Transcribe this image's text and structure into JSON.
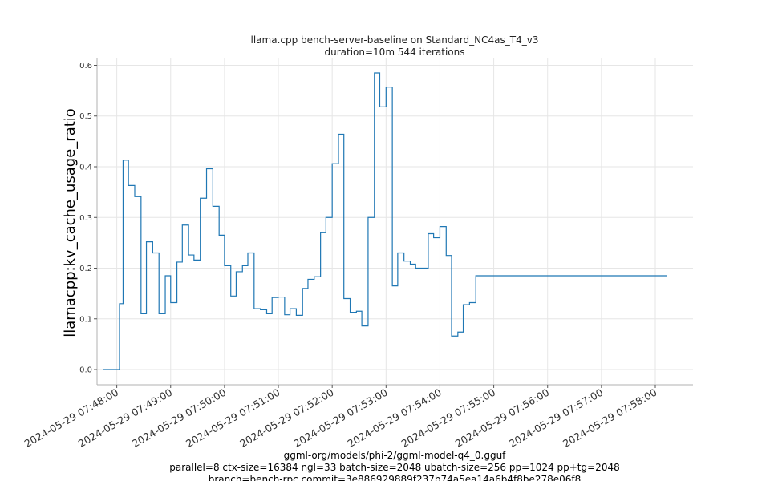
{
  "chart_data": {
    "type": "line",
    "title": "llama.cpp bench-server-baseline on Standard_NC4as_T4_v3",
    "subtitle": "duration=10m 544 iterations",
    "ylabel": "llamacpp:kv_cache_usage_ratio",
    "xlabel": "",
    "ylim": [
      -0.03,
      0.615
    ],
    "xlim": [
      "2024-05-29 07:47:38",
      "2024-05-29 07:58:42"
    ],
    "yticks": [
      "0.0",
      "0.1",
      "0.2",
      "0.3",
      "0.4",
      "0.5",
      "0.6"
    ],
    "yticks_values": [
      0.0,
      0.1,
      0.2,
      0.3,
      0.4,
      0.5,
      0.6
    ],
    "xticks": [
      "2024-05-29 07:48:00",
      "2024-05-29 07:49:00",
      "2024-05-29 07:50:00",
      "2024-05-29 07:51:00",
      "2024-05-29 07:52:00",
      "2024-05-29 07:53:00",
      "2024-05-29 07:54:00",
      "2024-05-29 07:55:00",
      "2024-05-29 07:56:00",
      "2024-05-29 07:57:00",
      "2024-05-29 07:58:00"
    ],
    "grid": true,
    "legend": "none",
    "line_color": "#1f77b4",
    "series": [
      {
        "x": [
          "2024-05-29 07:47:45",
          "2024-05-29 07:48:00",
          "2024-05-29 07:48:03",
          "2024-05-29 07:48:07",
          "2024-05-29 07:48:13",
          "2024-05-29 07:48:20",
          "2024-05-29 07:48:27",
          "2024-05-29 07:48:33",
          "2024-05-29 07:48:40",
          "2024-05-29 07:48:47",
          "2024-05-29 07:48:54",
          "2024-05-29 07:49:00",
          "2024-05-29 07:49:07",
          "2024-05-29 07:49:13",
          "2024-05-29 07:49:20",
          "2024-05-29 07:49:26",
          "2024-05-29 07:49:33",
          "2024-05-29 07:49:40",
          "2024-05-29 07:49:47",
          "2024-05-29 07:49:54",
          "2024-05-29 07:50:00",
          "2024-05-29 07:50:07",
          "2024-05-29 07:50:13",
          "2024-05-29 07:50:20",
          "2024-05-29 07:50:26",
          "2024-05-29 07:50:33",
          "2024-05-29 07:50:40",
          "2024-05-29 07:50:47",
          "2024-05-29 07:50:53",
          "2024-05-29 07:51:00",
          "2024-05-29 07:51:07",
          "2024-05-29 07:51:13",
          "2024-05-29 07:51:20",
          "2024-05-29 07:51:27",
          "2024-05-29 07:51:33",
          "2024-05-29 07:51:40",
          "2024-05-29 07:51:47",
          "2024-05-29 07:51:53",
          "2024-05-29 07:52:00",
          "2024-05-29 07:52:07",
          "2024-05-29 07:52:13",
          "2024-05-29 07:52:20",
          "2024-05-29 07:52:27",
          "2024-05-29 07:52:33",
          "2024-05-29 07:52:40",
          "2024-05-29 07:52:47",
          "2024-05-29 07:52:53",
          "2024-05-29 07:53:00",
          "2024-05-29 07:53:07",
          "2024-05-29 07:53:13",
          "2024-05-29 07:53:20",
          "2024-05-29 07:53:27",
          "2024-05-29 07:53:33",
          "2024-05-29 07:53:40",
          "2024-05-29 07:53:47",
          "2024-05-29 07:53:53",
          "2024-05-29 07:54:00",
          "2024-05-29 07:54:07",
          "2024-05-29 07:54:13",
          "2024-05-29 07:54:20",
          "2024-05-29 07:54:26",
          "2024-05-29 07:54:33",
          "2024-05-29 07:54:40",
          "2024-05-29 07:54:47",
          "2024-05-29 07:54:53",
          "2024-05-29 07:55:00",
          "2024-05-29 07:55:07",
          "2024-05-29 07:55:13",
          "2024-05-29 07:55:20",
          "2024-05-29 07:55:27",
          "2024-05-29 07:55:33",
          "2024-05-29 07:55:40",
          "2024-05-29 07:55:46",
          "2024-05-29 07:55:53",
          "2024-05-29 07:56:00",
          "2024-05-29 07:56:06",
          "2024-05-29 07:56:13",
          "2024-05-29 07:56:20",
          "2024-05-29 07:56:26",
          "2024-05-29 07:56:33",
          "2024-05-29 07:56:40",
          "2024-05-29 07:56:46",
          "2024-05-29 07:56:53",
          "2024-05-29 07:57:00",
          "2024-05-29 07:57:06",
          "2024-05-29 07:57:13",
          "2024-05-29 07:57:20",
          "2024-05-29 07:57:26",
          "2024-05-29 07:57:33",
          "2024-05-29 07:57:40",
          "2024-05-29 07:57:46",
          "2024-05-29 07:57:53",
          "2024-05-29 07:58:00",
          "2024-05-29 07:58:06",
          "2024-05-29 07:58:13"
        ],
        "y": [
          0.0,
          0.0,
          0.13,
          0.413,
          0.363,
          0.341,
          0.11,
          0.252,
          0.23,
          0.11,
          0.185,
          0.132,
          0.212,
          0.285,
          0.226,
          0.216,
          0.338,
          0.396,
          0.322,
          0.265,
          0.205,
          0.145,
          0.193,
          0.205,
          0.23,
          0.12,
          0.118,
          0.11,
          0.142,
          0.143,
          0.108,
          0.12,
          0.107,
          0.16,
          0.178,
          0.183,
          0.27,
          0.3,
          0.406,
          0.464,
          0.14,
          0.113,
          0.115,
          0.086,
          0.3,
          0.585,
          0.518,
          0.557,
          0.165,
          0.23,
          0.214,
          0.208,
          0.2,
          0.2,
          0.268,
          0.26,
          0.282,
          0.225,
          0.066,
          0.074,
          0.128,
          0.132,
          0.185,
          0.185,
          0.185,
          0.185,
          0.185,
          0.185,
          0.185,
          0.185,
          0.185,
          0.185,
          0.185,
          0.185,
          0.185,
          0.185,
          0.185,
          0.185,
          0.185,
          0.185,
          0.185,
          0.185,
          0.185,
          0.185,
          0.185,
          0.185,
          0.185,
          0.185,
          0.185,
          0.185,
          0.185,
          0.185,
          0.185,
          0.185,
          0.185
        ],
        "end": "2024-05-29 07:58:13"
      }
    ]
  },
  "footer": {
    "line1": "ggml-org/models/phi-2/ggml-model-q4_0.gguf",
    "line2": "parallel=8 ctx-size=16384 ngl=33 batch-size=2048 ubatch-size=256 pp=1024 pp+tg=2048",
    "line3": "branch=bench-rpc commit=3e886929889f237b74a5ea14a6b4f8be278e06f8"
  }
}
